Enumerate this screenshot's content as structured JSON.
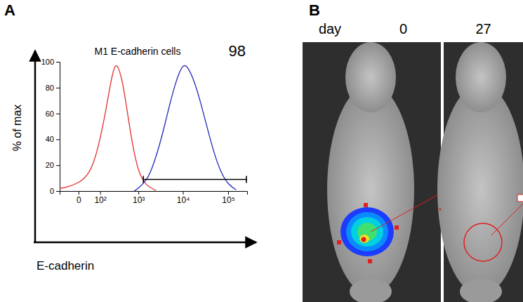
{
  "chart_data": {
    "type": "line",
    "title": "M1 E-cadherin cells",
    "x_label": "E-cadherin",
    "y_label": "% of max",
    "log": "x",
    "grid": false,
    "tick_labels": true,
    "xlim": [
      -80,
      262144
    ],
    "xticks": [
      0,
      {
        "value": 100,
        "label": "10²"
      },
      {
        "value": 1000,
        "label": "10³"
      },
      {
        "value": 10000,
        "label": "10⁴"
      },
      {
        "value": 100000,
        "label": "10⁵"
      }
    ],
    "ylim": [
      0,
      100
    ],
    "yticks": [
      0,
      20,
      40,
      60,
      80,
      100
    ],
    "series": [
      {
        "color": "#e0312f",
        "x": [
          -80,
          -40,
          0,
          30,
          60,
          100,
          150,
          200,
          250,
          300,
          400,
          500,
          700,
          1000,
          1500,
          2500
        ],
        "values": [
          2,
          3,
          6,
          12,
          22,
          40,
          62,
          82,
          95,
          99,
          88,
          70,
          38,
          14,
          4,
          0.5
        ]
      },
      {
        "color": "#2228b8",
        "x": [
          800,
          1000,
          1500,
          2000,
          3000,
          4000,
          5000,
          7000,
          10000,
          13000,
          18000,
          25000,
          35000,
          50000,
          70000,
          100000,
          150000
        ],
        "values": [
          0,
          2,
          8,
          16,
          35,
          52,
          66,
          85,
          99,
          96,
          85,
          68,
          48,
          28,
          14,
          5,
          1
        ]
      }
    ],
    "gate": {
      "from": 1300,
      "to": 262144,
      "level": 9,
      "percent": 98
    }
  },
  "figure": {
    "panel_labels": [
      "A",
      "B"
    ],
    "day_label": "day",
    "days": [
      0,
      27
    ]
  }
}
